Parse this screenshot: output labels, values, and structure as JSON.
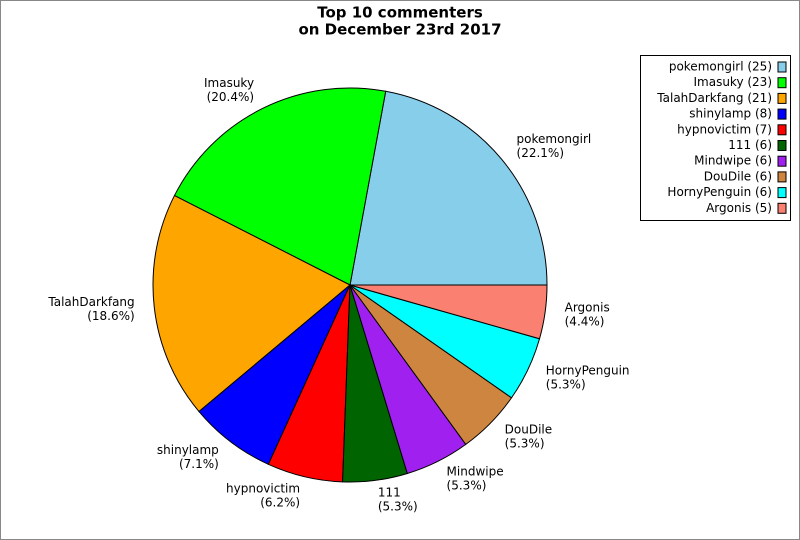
{
  "chart_data": {
    "type": "pie",
    "title": [
      "Top 10 commenters",
      "on December 23rd 2017"
    ],
    "categories": [
      "pokemongirl",
      "Imasuky",
      "TalahDarkfang",
      "shinylamp",
      "hypnovictim",
      "111",
      "Mindwipe",
      "DouDile",
      "HornyPenguin",
      "Argonis"
    ],
    "values": [
      22.1,
      20.4,
      18.6,
      7.1,
      6.2,
      5.3,
      5.3,
      5.3,
      5.3,
      4.4
    ],
    "value_labels": [
      "(22.1%)",
      "(20.4%)",
      "(18.6%)",
      "(7.1%)",
      "(6.2%)",
      "(5.3%)",
      "(5.3%)",
      "(5.3%)",
      "(5.3%)",
      "(4.4%)"
    ],
    "legend_labels": [
      "pokemongirl (25)",
      "Imasuky (23)",
      "TalahDarkfang (21)",
      "shinylamp (8)",
      "hypnovictim (7)",
      "111 (6)",
      "Mindwipe (6)",
      "DouDile (6)",
      "HornyPenguin (6)",
      "Argonis (5)"
    ],
    "colors": [
      "#87ceeb",
      "#00ff00",
      "#ffa500",
      "#0000ff",
      "#ff0000",
      "#006400",
      "#a020f0",
      "#cd853f",
      "#00ffff",
      "#fa8072"
    ],
    "legend": "upper right"
  }
}
